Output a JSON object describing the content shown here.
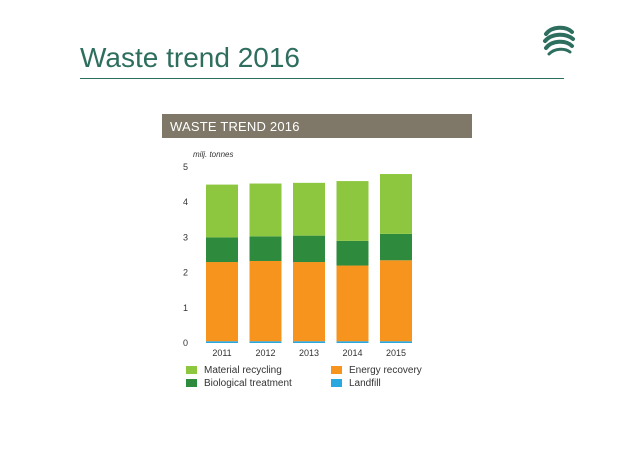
{
  "slide": {
    "title": "Waste trend 2016"
  },
  "logo": {
    "icon": "layered-swoosh-icon",
    "color": "#2e6e5e"
  },
  "colors": {
    "title": "#2e6e5e",
    "header_bg": "#7f7868",
    "material_recycling": "#8dc63f",
    "biological_treatment": "#2e8b3e",
    "energy_recovery": "#f7941d",
    "landfill": "#29a8e0"
  },
  "chart_data": {
    "type": "bar",
    "stacked": true,
    "title": "WASTE TREND 2016",
    "ylabel": "milj. tonnes",
    "ylim": [
      0,
      5
    ],
    "yticks": [
      "0",
      "1",
      "2",
      "3",
      "4",
      "5"
    ],
    "grid": false,
    "legend_position": "bottom",
    "categories": [
      "2011",
      "2012",
      "2013",
      "2014",
      "2015"
    ],
    "series": [
      {
        "name": "Landfill",
        "color": "#29a8e0",
        "values": [
          0.05,
          0.05,
          0.05,
          0.05,
          0.05
        ]
      },
      {
        "name": "Energy recovery",
        "color": "#f7941d",
        "values": [
          2.25,
          2.28,
          2.25,
          2.15,
          2.3
        ]
      },
      {
        "name": "Biological treatment",
        "color": "#2e8b3e",
        "values": [
          0.7,
          0.7,
          0.75,
          0.7,
          0.75
        ]
      },
      {
        "name": "Material recycling",
        "color": "#8dc63f",
        "values": [
          1.5,
          1.5,
          1.5,
          1.7,
          1.7
        ]
      }
    ]
  },
  "legend": {
    "material_recycling": "Material recycling",
    "biological_treatment": "Biological treatment",
    "energy_recovery": "Energy recovery",
    "landfill": "Landfill"
  }
}
